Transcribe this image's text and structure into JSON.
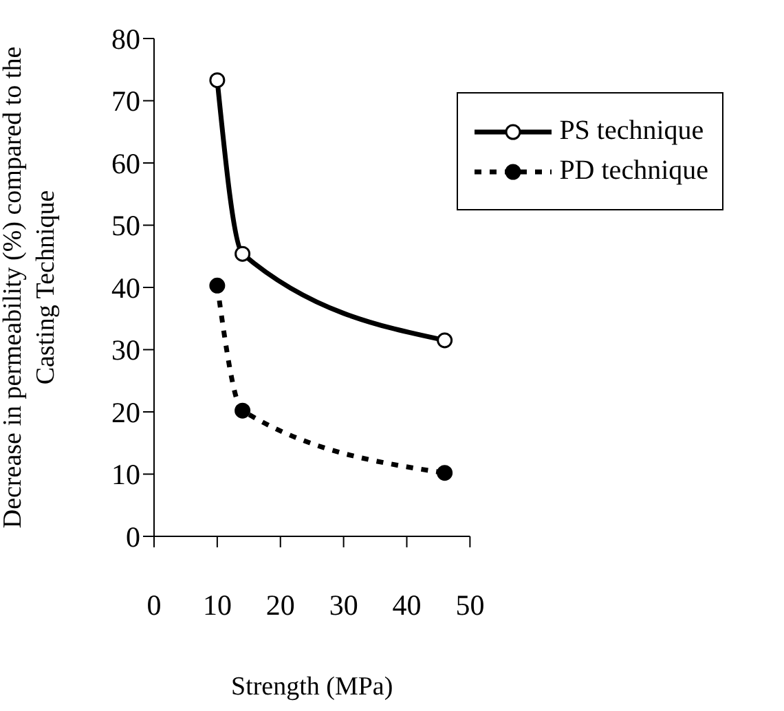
{
  "chart_data": {
    "type": "line",
    "xlabel": "Strength (MPa)",
    "ylabel": "Decrease in permeability (%) compared to the Casting Technique",
    "x": [
      10,
      14,
      46
    ],
    "series": [
      {
        "name": "PS technique",
        "color": "#000000",
        "values": [
          73.3,
          45.4,
          31.5
        ],
        "line_style": "solid",
        "marker": "circle"
      },
      {
        "name": "PD technique",
        "color": "#000000",
        "values": [
          40.3,
          20.2,
          10.2
        ],
        "line_style": "dotted",
        "marker": "circle"
      }
    ],
    "xlim": [
      0,
      50
    ],
    "xticks": [
      0,
      10,
      20,
      30,
      40,
      50
    ],
    "ylim": [
      0,
      80
    ],
    "yticks": [
      0,
      10,
      20,
      30,
      40,
      50,
      60,
      70,
      80
    ],
    "grid": false,
    "legend": "top right"
  }
}
